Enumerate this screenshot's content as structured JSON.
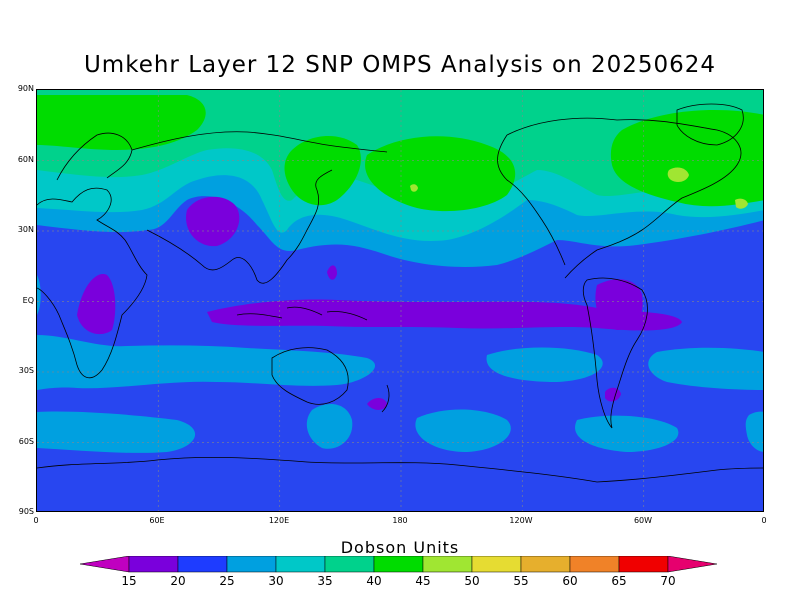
{
  "title": "Umkehr Layer 12 SNP OMPS Analysis on 20250624",
  "units_label": "Dobson Units",
  "lat_labels": [
    "90N",
    "60N",
    "30N",
    "EQ",
    "30S",
    "60S",
    "90S"
  ],
  "lon_labels": [
    "0",
    "60E",
    "120E",
    "180",
    "120W",
    "60W",
    "0"
  ],
  "colorbar": {
    "ticks": [
      "15",
      "20",
      "25",
      "30",
      "35",
      "40",
      "45",
      "50",
      "55",
      "60",
      "65",
      "70"
    ],
    "colors": [
      "#c000c0",
      "#7a00dc",
      "#1e3cff",
      "#00a0e0",
      "#00c8c8",
      "#00d28c",
      "#00dc00",
      "#a0e632",
      "#e6dc32",
      "#e6af2d",
      "#f08228",
      "#f00000",
      "#e6006e"
    ]
  },
  "field_colors": {
    "c20": "#7a00dc",
    "c25": "#2846f0",
    "c30": "#00a0e0",
    "c35": "#00c8c8",
    "c40": "#00d28c",
    "c45": "#00dc00",
    "c50": "#a0e632"
  }
}
